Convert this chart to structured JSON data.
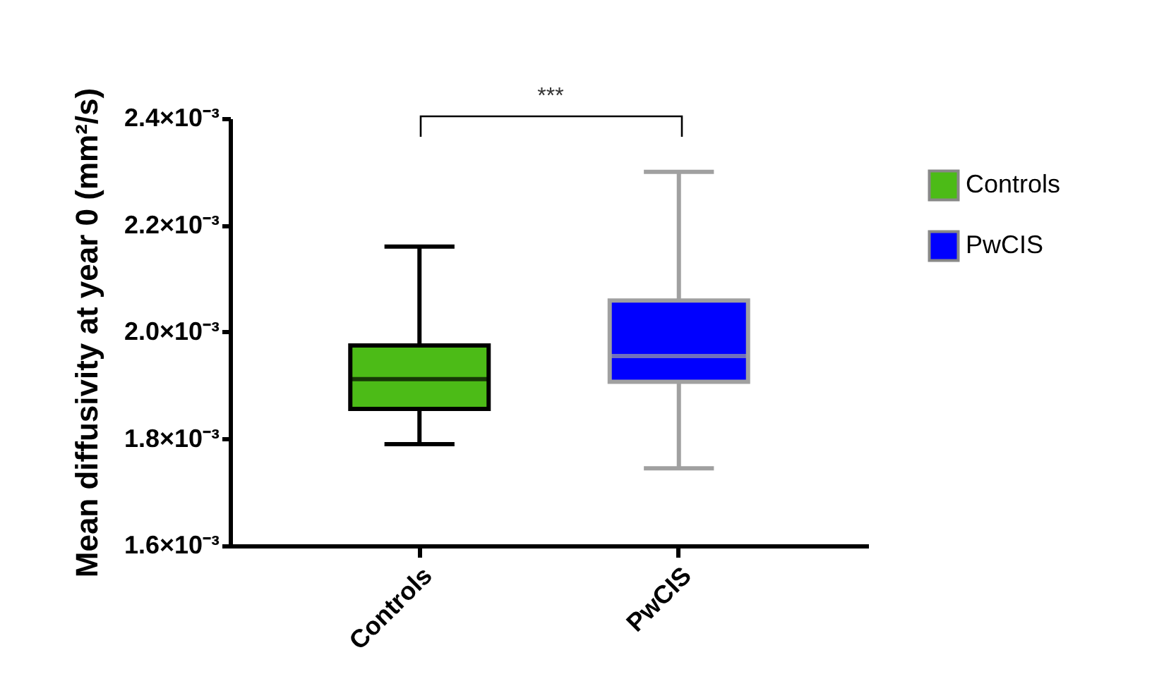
{
  "chart_data": {
    "type": "box",
    "categories": [
      "Controls",
      "PwCIS"
    ],
    "ylabel": "Mean diffusivity at year 0 (mm²/s)",
    "ylim": [
      0.0016,
      0.0024
    ],
    "yticks": [
      {
        "value": 0.0016,
        "label": "1.6×10⁻³"
      },
      {
        "value": 0.0018,
        "label": "1.8×10⁻³"
      },
      {
        "value": 0.002,
        "label": "2.0×10⁻³"
      },
      {
        "value": 0.0022,
        "label": "2.2×10⁻³"
      },
      {
        "value": 0.0024,
        "label": "2.4×10⁻³"
      }
    ],
    "series": [
      {
        "name": "Controls",
        "color": "#4cbb17",
        "boxes": [
          {
            "low": 0.00179,
            "q1": 0.001856,
            "median": 0.001912,
            "q3": 0.001975,
            "high": 0.00216
          },
          null
        ]
      },
      {
        "name": "PwCIS",
        "color": "#0000ff",
        "boxes": [
          null,
          {
            "low": 0.001745,
            "q1": 0.001907,
            "median": 0.001955,
            "q3": 0.002059,
            "high": 0.0023
          }
        ]
      }
    ],
    "annotations": [
      "***"
    ],
    "legend": "top right",
    "grid": false
  }
}
